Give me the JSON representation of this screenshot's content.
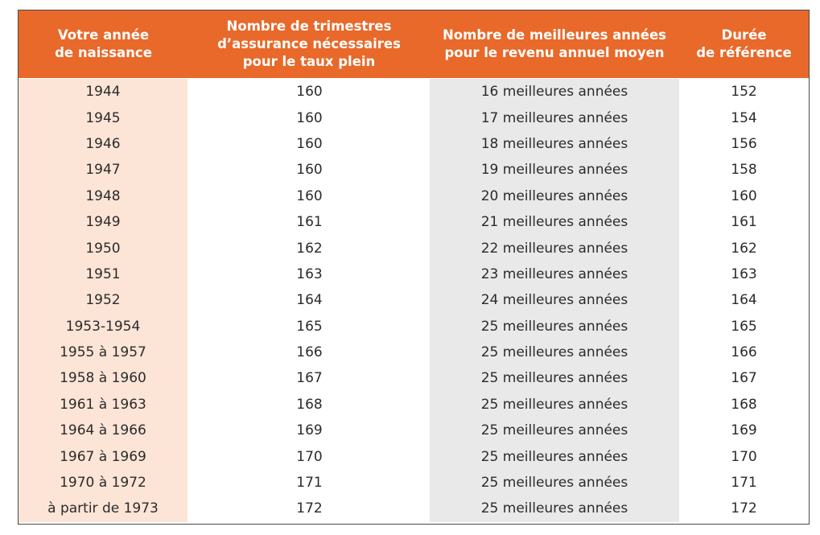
{
  "table": {
    "headers": [
      {
        "line1": "Votre année",
        "line2": "de naissance",
        "line3": ""
      },
      {
        "line1": "Nombre de trimestres",
        "line2": "d’assurance nécessaires",
        "line3": "pour le taux plein"
      },
      {
        "line1": "Nombre de meilleures années",
        "line2": "pour le revenu annuel moyen",
        "line3": ""
      },
      {
        "line1": "Durée",
        "line2": "de référence",
        "line3": ""
      }
    ],
    "rows": [
      {
        "year": "1944",
        "quarters": "160",
        "best_years": "16 meilleures années",
        "reference": "152"
      },
      {
        "year": "1945",
        "quarters": "160",
        "best_years": "17 meilleures années",
        "reference": "154"
      },
      {
        "year": "1946",
        "quarters": "160",
        "best_years": "18 meilleures années",
        "reference": "156"
      },
      {
        "year": "1947",
        "quarters": "160",
        "best_years": "19 meilleures années",
        "reference": "158"
      },
      {
        "year": "1948",
        "quarters": "160",
        "best_years": "20 meilleures années",
        "reference": "160"
      },
      {
        "year": "1949",
        "quarters": "161",
        "best_years": "21 meilleures années",
        "reference": "161"
      },
      {
        "year": "1950",
        "quarters": "162",
        "best_years": "22 meilleures années",
        "reference": "162"
      },
      {
        "year": "1951",
        "quarters": "163",
        "best_years": "23 meilleures années",
        "reference": "163"
      },
      {
        "year": "1952",
        "quarters": "164",
        "best_years": "24 meilleures années",
        "reference": "164"
      },
      {
        "year": "1953-1954",
        "quarters": "165",
        "best_years": "25 meilleures années",
        "reference": "165"
      },
      {
        "year": "1955 à 1957",
        "quarters": "166",
        "best_years": "25 meilleures années",
        "reference": "166"
      },
      {
        "year": "1958 à 1960",
        "quarters": "167",
        "best_years": "25 meilleures années",
        "reference": "167"
      },
      {
        "year": "1961 à 1963",
        "quarters": "168",
        "best_years": "25 meilleures années",
        "reference": "168"
      },
      {
        "year": "1964 à 1966",
        "quarters": "169",
        "best_years": "25 meilleures années",
        "reference": "169"
      },
      {
        "year": "1967 à 1969",
        "quarters": "170",
        "best_years": "25 meilleures années",
        "reference": "170"
      },
      {
        "year": "1970 à 1972",
        "quarters": "171",
        "best_years": "25 meilleures années",
        "reference": "171"
      },
      {
        "year": "à partir de 1973",
        "quarters": "172",
        "best_years": "25 meilleures années",
        "reference": "172"
      }
    ]
  },
  "colors": {
    "header_bg": "#e8692a",
    "header_text": "#ffffff",
    "year_column_bg": "#fce4d6",
    "best_years_column_bg": "#e9e9e9",
    "text": "#2b2b2b"
  }
}
